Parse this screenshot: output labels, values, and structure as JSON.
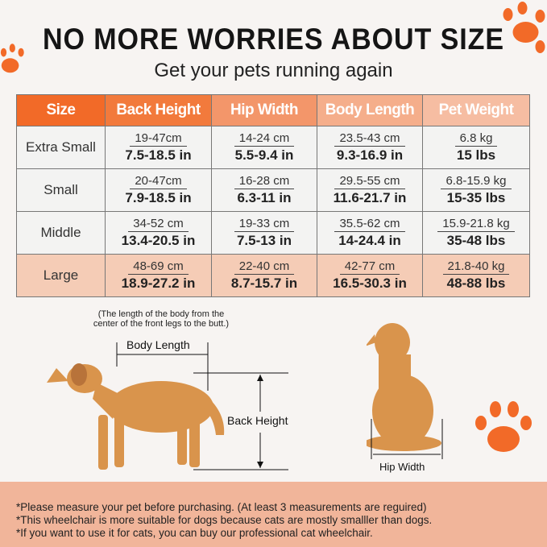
{
  "title": "NO MORE WORRIES ABOUT SIZE",
  "subtitle": "Get your pets running again",
  "table": {
    "headers": [
      "Size",
      "Back Height",
      "Hip Width",
      "Body Length",
      "Pet Weight"
    ],
    "header_colors": [
      "#f26a28",
      "#f27a3c",
      "#f3966a",
      "#f5ae8b",
      "#f6bda2"
    ],
    "rows": [
      {
        "size": "Extra Small",
        "cells": [
          [
            "19-47cm",
            "7.5-18.5 in"
          ],
          [
            "14-24 cm",
            "5.5-9.4 in"
          ],
          [
            "23.5-43 cm",
            "9.3-16.9 in"
          ],
          [
            "6.8 kg",
            "15 lbs"
          ]
        ]
      },
      {
        "size": "Small",
        "cells": [
          [
            "20-47cm",
            "7.9-18.5 in"
          ],
          [
            "16-28 cm",
            "6.3-11 in"
          ],
          [
            "29.5-55 cm",
            "11.6-21.7 in"
          ],
          [
            "6.8-15.9 kg",
            "15-35 lbs"
          ]
        ]
      },
      {
        "size": "Middle",
        "cells": [
          [
            "34-52 cm",
            "13.4-20.5 in"
          ],
          [
            "19-33 cm",
            "7.5-13 in"
          ],
          [
            "35.5-62 cm",
            "14-24.4 in"
          ],
          [
            "15.9-21.8 kg",
            "35-48 lbs"
          ]
        ]
      },
      {
        "size": "Large",
        "cells": [
          [
            "48-69 cm",
            "18.9-27.2 in"
          ],
          [
            "22-40 cm",
            "8.7-15.7 in"
          ],
          [
            "42-77 cm",
            "16.5-30.3 in"
          ],
          [
            "21.8-40 kg",
            "48-88 lbs"
          ]
        ]
      }
    ]
  },
  "diagram": {
    "note": "(The length of the body from the center of the front legs to the butt.)",
    "body_length": "Body Length",
    "back_height": "Back Height",
    "hip_width": "Hip Width"
  },
  "footer": [
    "*Please measure your pet before purchasing. (At least 3 measurements are reguired)",
    "*This wheelchair is more suitable for dogs because cats are mostly smalller than dogs.",
    "*If you want to use it for cats, you can buy our professional cat wheelchair."
  ],
  "colors": {
    "accent": "#f26a28",
    "dog": "#d9944c"
  }
}
